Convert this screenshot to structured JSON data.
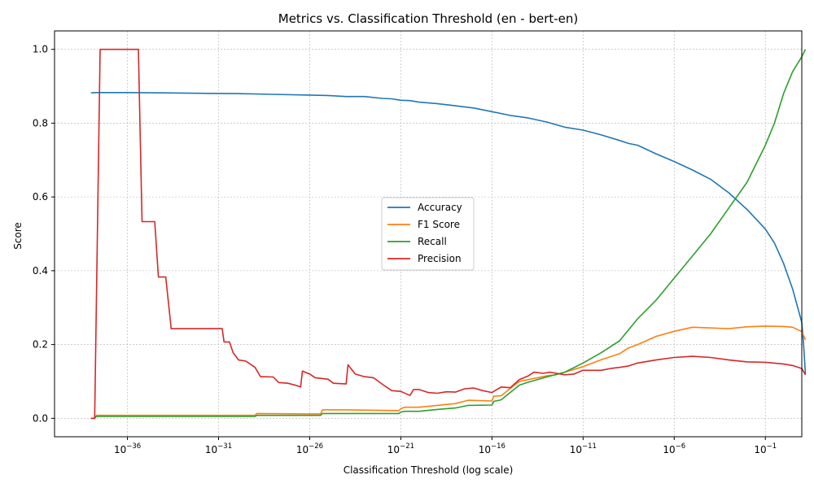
{
  "chart_data": {
    "type": "line",
    "title": "Metrics vs. Classification Threshold (en - bert-en)",
    "xlabel": "Classification Threshold (log scale)",
    "ylabel": "Score",
    "xscale": "log",
    "xlim": [
      1e-40,
      10
    ],
    "ylim": [
      -0.05,
      1.05
    ],
    "xticks": [
      {
        "value": 1e-36,
        "base": "10",
        "exp": "−36"
      },
      {
        "value": 1e-31,
        "base": "10",
        "exp": "−31"
      },
      {
        "value": 1e-26,
        "base": "10",
        "exp": "−26"
      },
      {
        "value": 1e-21,
        "base": "10",
        "exp": "−21"
      },
      {
        "value": 1e-16,
        "base": "10",
        "exp": "−16"
      },
      {
        "value": 1e-11,
        "base": "10",
        "exp": "−11"
      },
      {
        "value": 1e-06,
        "base": "10",
        "exp": "−6"
      },
      {
        "value": 0.1,
        "base": "10",
        "exp": "−1"
      }
    ],
    "yticks": [
      "0.0",
      "0.2",
      "0.4",
      "0.6",
      "0.8",
      "1.0"
    ],
    "grid": true,
    "legend_position": "center",
    "series": [
      {
        "name": "Accuracy",
        "color": "#1f77b4",
        "points": [
          [
            -38,
            0.882
          ],
          [
            -37.7,
            0.883
          ],
          [
            -36,
            0.883
          ],
          [
            -34,
            0.882
          ],
          [
            -32,
            0.881
          ],
          [
            -30,
            0.88
          ],
          [
            -28,
            0.878
          ],
          [
            -26,
            0.876
          ],
          [
            -25,
            0.875
          ],
          [
            -24,
            0.872
          ],
          [
            -23,
            0.872
          ],
          [
            -22,
            0.867
          ],
          [
            -21.5,
            0.866
          ],
          [
            -21,
            0.862
          ],
          [
            -20.5,
            0.861
          ],
          [
            -20,
            0.857
          ],
          [
            -19,
            0.853
          ],
          [
            -18,
            0.847
          ],
          [
            -17,
            0.841
          ],
          [
            -16,
            0.831
          ],
          [
            -15,
            0.821
          ],
          [
            -14,
            0.814
          ],
          [
            -13,
            0.803
          ],
          [
            -12,
            0.789
          ],
          [
            -11,
            0.781
          ],
          [
            -10,
            0.768
          ],
          [
            -9,
            0.753
          ],
          [
            -8.5,
            0.745
          ],
          [
            -8,
            0.74
          ],
          [
            -7,
            0.717
          ],
          [
            -6,
            0.696
          ],
          [
            -5,
            0.673
          ],
          [
            -4,
            0.648
          ],
          [
            -3,
            0.611
          ],
          [
            -2,
            0.566
          ],
          [
            -1,
            0.513
          ],
          [
            -0.5,
            0.475
          ],
          [
            0,
            0.42
          ],
          [
            0.5,
            0.35
          ],
          [
            1,
            0.26
          ],
          [
            1.1,
            0.2
          ],
          [
            1.2,
            0.12
          ]
        ]
      },
      {
        "name": "F1 Score",
        "color": "#ff7f0e",
        "points": [
          [
            -38,
            0.0
          ],
          [
            -37.8,
            0.0
          ],
          [
            -37.7,
            0.008
          ],
          [
            -36,
            0.008
          ],
          [
            -31,
            0.008
          ],
          [
            -29,
            0.008
          ],
          [
            -28.9,
            0.013
          ],
          [
            -26,
            0.012
          ],
          [
            -25.4,
            0.012
          ],
          [
            -25.3,
            0.023
          ],
          [
            -24,
            0.023
          ],
          [
            -21.1,
            0.021
          ],
          [
            -21,
            0.026
          ],
          [
            -20.8,
            0.03
          ],
          [
            -20,
            0.03
          ],
          [
            -19,
            0.035
          ],
          [
            -18,
            0.04
          ],
          [
            -17.3,
            0.049
          ],
          [
            -16,
            0.047
          ],
          [
            -15.9,
            0.06
          ],
          [
            -15.5,
            0.061
          ],
          [
            -15,
            0.081
          ],
          [
            -14.5,
            0.1
          ],
          [
            -14,
            0.105
          ],
          [
            -13,
            0.115
          ],
          [
            -12.5,
            0.118
          ],
          [
            -12,
            0.125
          ],
          [
            -11,
            0.14
          ],
          [
            -10,
            0.159
          ],
          [
            -9,
            0.175
          ],
          [
            -8.5,
            0.191
          ],
          [
            -8,
            0.2
          ],
          [
            -7,
            0.222
          ],
          [
            -6,
            0.236
          ],
          [
            -5,
            0.247
          ],
          [
            -4,
            0.245
          ],
          [
            -3,
            0.243
          ],
          [
            -2,
            0.248
          ],
          [
            -1,
            0.25
          ],
          [
            0,
            0.249
          ],
          [
            0.5,
            0.247
          ],
          [
            1,
            0.235
          ],
          [
            1.2,
            0.213
          ]
        ]
      },
      {
        "name": "Recall",
        "color": "#2ca02c",
        "points": [
          [
            -38,
            0.0
          ],
          [
            -37.8,
            0.0
          ],
          [
            -37.7,
            0.005
          ],
          [
            -36,
            0.005
          ],
          [
            -31,
            0.005
          ],
          [
            -29,
            0.005
          ],
          [
            -28.9,
            0.008
          ],
          [
            -26,
            0.008
          ],
          [
            -25.4,
            0.008
          ],
          [
            -25.3,
            0.013
          ],
          [
            -22,
            0.013
          ],
          [
            -21.1,
            0.013
          ],
          [
            -21,
            0.017
          ],
          [
            -20.8,
            0.019
          ],
          [
            -20,
            0.019
          ],
          [
            -19,
            0.024
          ],
          [
            -18,
            0.028
          ],
          [
            -17.3,
            0.035
          ],
          [
            -16,
            0.036
          ],
          [
            -15.9,
            0.046
          ],
          [
            -15.5,
            0.05
          ],
          [
            -15,
            0.07
          ],
          [
            -14.5,
            0.09
          ],
          [
            -14,
            0.098
          ],
          [
            -13,
            0.112
          ],
          [
            -12,
            0.125
          ],
          [
            -11,
            0.15
          ],
          [
            -10,
            0.178
          ],
          [
            -9,
            0.21
          ],
          [
            -8.5,
            0.24
          ],
          [
            -8,
            0.27
          ],
          [
            -7,
            0.32
          ],
          [
            -6,
            0.38
          ],
          [
            -5,
            0.44
          ],
          [
            -4,
            0.5
          ],
          [
            -3,
            0.57
          ],
          [
            -2,
            0.64
          ],
          [
            -1,
            0.74
          ],
          [
            -0.5,
            0.8
          ],
          [
            0,
            0.88
          ],
          [
            0.5,
            0.94
          ],
          [
            1,
            0.98
          ],
          [
            1.2,
            1.0
          ]
        ]
      },
      {
        "name": "Precision",
        "color": "#d62728",
        "points": [
          [
            -38,
            0.0
          ],
          [
            -37.8,
            0.0
          ],
          [
            -37.5,
            1.0
          ],
          [
            -35.4,
            1.0
          ],
          [
            -35.2,
            0.533
          ],
          [
            -34.5,
            0.533
          ],
          [
            -34.3,
            0.383
          ],
          [
            -33.9,
            0.383
          ],
          [
            -33.6,
            0.243
          ],
          [
            -30.8,
            0.243
          ],
          [
            -30.7,
            0.207
          ],
          [
            -30.4,
            0.207
          ],
          [
            -30.2,
            0.178
          ],
          [
            -29.9,
            0.158
          ],
          [
            -29.5,
            0.155
          ],
          [
            -29,
            0.138
          ],
          [
            -28.7,
            0.113
          ],
          [
            -28,
            0.112
          ],
          [
            -27.7,
            0.097
          ],
          [
            -27.2,
            0.095
          ],
          [
            -26.8,
            0.09
          ],
          [
            -26.5,
            0.085
          ],
          [
            -26.4,
            0.128
          ],
          [
            -26,
            0.12
          ],
          [
            -25.7,
            0.11
          ],
          [
            -25,
            0.106
          ],
          [
            -24.7,
            0.095
          ],
          [
            -24,
            0.093
          ],
          [
            -23.9,
            0.145
          ],
          [
            -23.5,
            0.12
          ],
          [
            -23,
            0.113
          ],
          [
            -22.5,
            0.11
          ],
          [
            -22,
            0.092
          ],
          [
            -21.5,
            0.075
          ],
          [
            -21,
            0.073
          ],
          [
            -20.5,
            0.062
          ],
          [
            -20.3,
            0.078
          ],
          [
            -20,
            0.078
          ],
          [
            -19.5,
            0.07
          ],
          [
            -19,
            0.068
          ],
          [
            -18.5,
            0.072
          ],
          [
            -18,
            0.071
          ],
          [
            -17.5,
            0.08
          ],
          [
            -17,
            0.082
          ],
          [
            -16.5,
            0.075
          ],
          [
            -16,
            0.07
          ],
          [
            -15.5,
            0.085
          ],
          [
            -15,
            0.083
          ],
          [
            -14.5,
            0.105
          ],
          [
            -14,
            0.115
          ],
          [
            -13.7,
            0.125
          ],
          [
            -13.2,
            0.122
          ],
          [
            -12.8,
            0.125
          ],
          [
            -12,
            0.118
          ],
          [
            -11.5,
            0.12
          ],
          [
            -11,
            0.13
          ],
          [
            -10,
            0.13
          ],
          [
            -9.5,
            0.135
          ],
          [
            -9,
            0.138
          ],
          [
            -8.5,
            0.142
          ],
          [
            -8,
            0.15
          ],
          [
            -7,
            0.158
          ],
          [
            -6,
            0.165
          ],
          [
            -5,
            0.168
          ],
          [
            -4,
            0.165
          ],
          [
            -3,
            0.158
          ],
          [
            -2,
            0.153
          ],
          [
            -1,
            0.152
          ],
          [
            0,
            0.147
          ],
          [
            0.5,
            0.143
          ],
          [
            1,
            0.135
          ],
          [
            1.2,
            0.118
          ]
        ]
      }
    ]
  }
}
